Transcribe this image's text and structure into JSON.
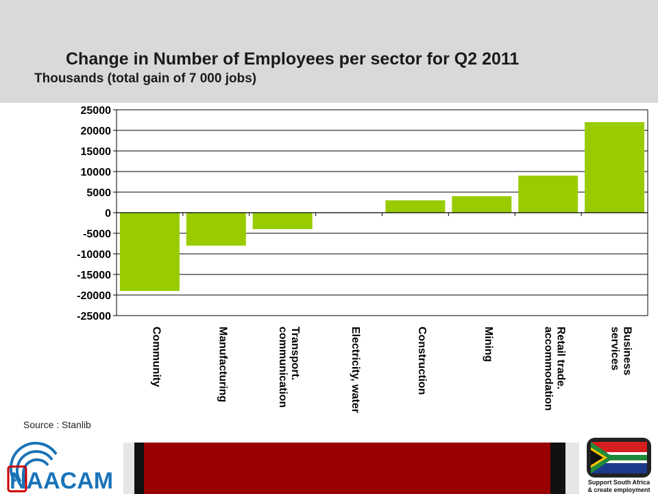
{
  "header": {
    "title": "Change in Number of Employees per sector for Q2 2011",
    "subtitle": "Thousands (total gain of 7 000 jobs)"
  },
  "chart_data": {
    "type": "bar",
    "title": "Change in Number of Employees per sector for Q2 2011",
    "subtitle": "Thousands (total gain of 7 000 jobs)",
    "categories": [
      "Community",
      "Manufacturing",
      "Transport.\ncommunication",
      "Electricity, water",
      "Construction",
      "Mining",
      "Retail trade.\naccommodation",
      "Business\nservices"
    ],
    "values": [
      -19000,
      -8000,
      -4000,
      0,
      3000,
      4000,
      9000,
      22000
    ],
    "ylim": [
      -25000,
      25000
    ],
    "yticks": [
      25000,
      20000,
      15000,
      10000,
      5000,
      0,
      -5000,
      -10000,
      -15000,
      -20000,
      -25000
    ],
    "grid": true,
    "bar_color": "#99cc00"
  },
  "source": "Source : Stanlib",
  "logos": {
    "left": "NAACAM",
    "right_line1": "Support South Africa",
    "right_line2": "& create employment"
  },
  "colors": {
    "header_band": "#d9d9d9",
    "footer_red": "#990000",
    "bar": "#99cc00",
    "naacam_blue": "#1a73b8",
    "naacam_red": "#cc0000"
  }
}
